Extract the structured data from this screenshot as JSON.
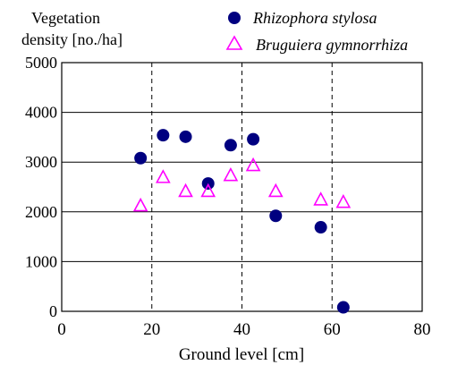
{
  "chart_data": {
    "type": "scatter",
    "title": "",
    "xlabel": "Ground level [cm]",
    "ylabel_line1": "Vegetation",
    "ylabel_line2": "density  [no./ha]",
    "xlim": [
      0,
      80
    ],
    "ylim": [
      0,
      5000
    ],
    "x_ticks": [
      "0",
      "20",
      "40",
      "60",
      "80"
    ],
    "y_ticks": [
      "0",
      "1000",
      "2000",
      "3000",
      "4000",
      "5000"
    ],
    "grid": {
      "horizontal": "solid",
      "vertical": "dashed"
    },
    "legend_position": "top",
    "series": [
      {
        "name": "Rhizophora stylosa",
        "marker": "filled-circle",
        "color": "#000080",
        "points": [
          [
            17.5,
            3080
          ],
          [
            22.5,
            3540
          ],
          [
            27.5,
            3510
          ],
          [
            32.5,
            2570
          ],
          [
            37.5,
            3340
          ],
          [
            42.5,
            3460
          ],
          [
            47.5,
            1920
          ],
          [
            57.5,
            1690
          ],
          [
            62.5,
            80
          ]
        ]
      },
      {
        "name": "Bruguiera gymnorrhiza",
        "marker": "open-triangle",
        "color": "#ff00ff",
        "points": [
          [
            17.5,
            2130
          ],
          [
            22.5,
            2700
          ],
          [
            27.5,
            2420
          ],
          [
            32.5,
            2420
          ],
          [
            37.5,
            2740
          ],
          [
            42.5,
            2940
          ],
          [
            47.5,
            2420
          ],
          [
            57.5,
            2250
          ],
          [
            62.5,
            2200
          ]
        ]
      }
    ]
  }
}
